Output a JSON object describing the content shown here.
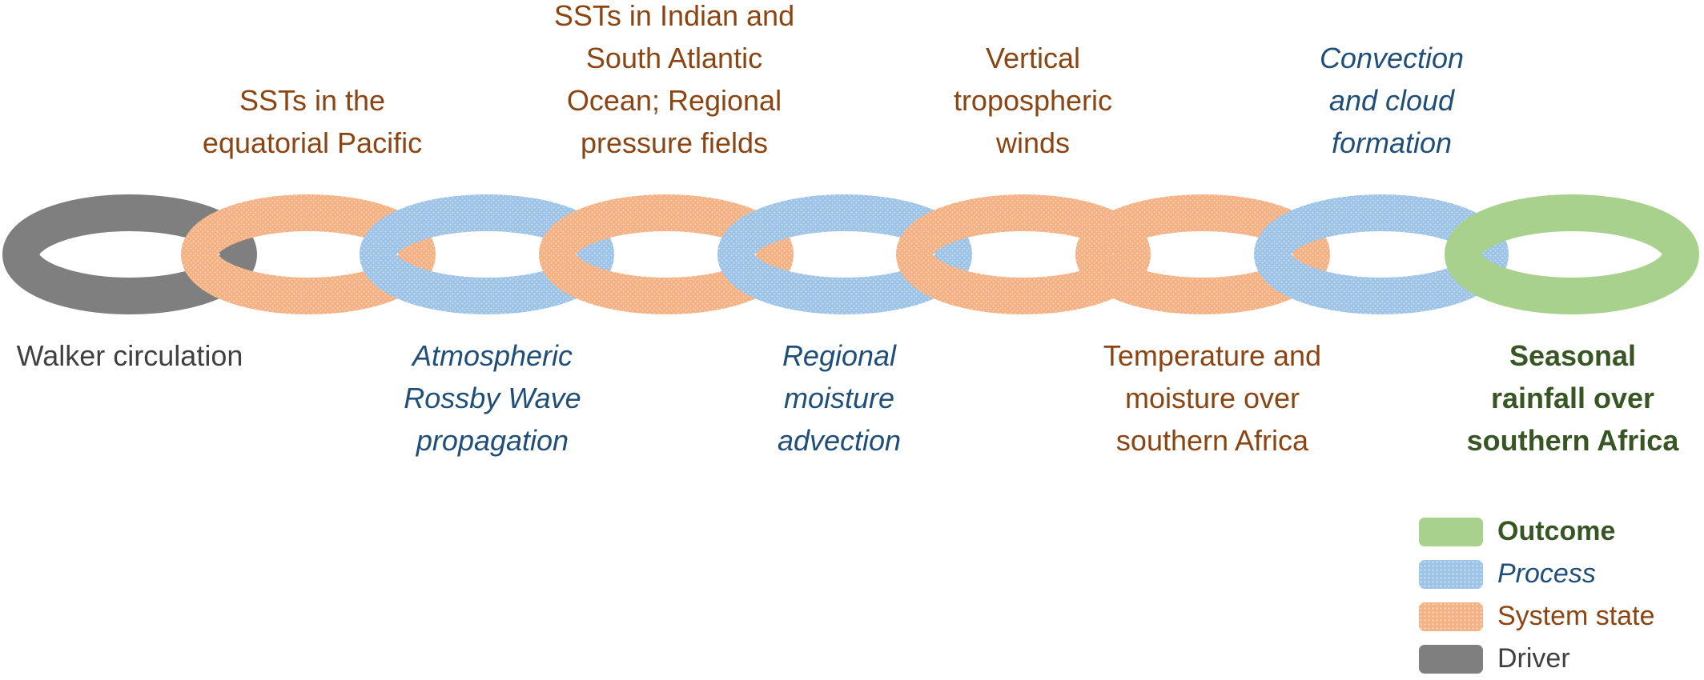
{
  "colors": {
    "driver": "#7f7f7f",
    "system_state": "#f4b183",
    "process": "#9dc3e6",
    "outcome": "#a9d18e",
    "system_state_text": "#8b4513",
    "process_text": "#1f4e79",
    "outcome_text": "#375623",
    "driver_text": "#404040"
  },
  "links": [
    {
      "category": "driver",
      "lines": [
        "Walker circulation"
      ]
    },
    {
      "category": "system_state",
      "lines": [
        "SSTs in the",
        "equatorial Pacific"
      ]
    },
    {
      "category": "process",
      "lines": [
        "Atmospheric",
        "Rossby Wave",
        "propagation"
      ]
    },
    {
      "category": "system_state",
      "lines": [
        "SSTs in Indian and",
        "South Atlantic",
        "Ocean; Regional",
        "pressure fields"
      ]
    },
    {
      "category": "process",
      "lines": [
        "Regional",
        "moisture",
        "advection"
      ]
    },
    {
      "category": "system_state",
      "lines": [
        "Vertical",
        "tropospheric",
        "winds"
      ]
    },
    {
      "category": "system_state",
      "lines": [
        "Temperature and",
        "moisture over",
        "southern Africa"
      ]
    },
    {
      "category": "process",
      "lines": [
        "Convection",
        "and cloud",
        "formation"
      ]
    },
    {
      "category": "outcome",
      "lines": [
        "Seasonal",
        "rainfall over",
        "southern Africa"
      ]
    }
  ],
  "legend": {
    "items": [
      {
        "category": "outcome",
        "label": "Outcome"
      },
      {
        "category": "process",
        "label": "Process"
      },
      {
        "category": "system_state",
        "label": "System state"
      },
      {
        "category": "driver",
        "label": "Driver"
      }
    ]
  }
}
